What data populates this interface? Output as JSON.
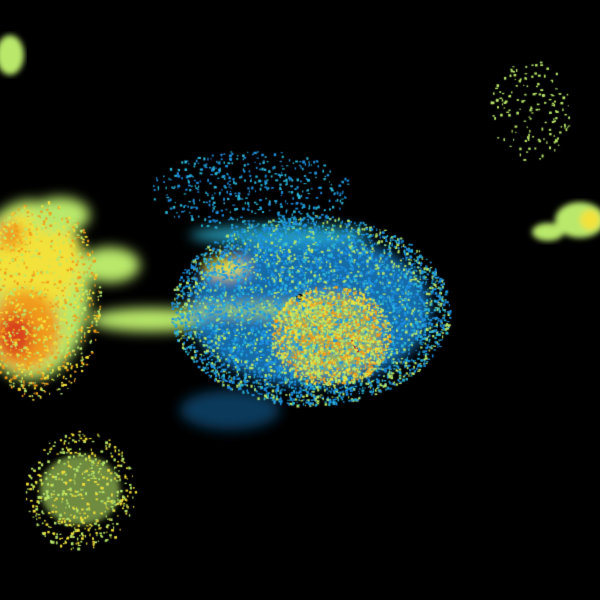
{
  "image": {
    "kind": "weather radar reflectivity display",
    "background": "#000000",
    "palette": {
      "light_blue": "#1e8fe0",
      "cyan": "#2bb7d8",
      "green_yellow": "#b9e86a",
      "yellow": "#f2e23a",
      "orange": "#f09a1a",
      "red": "#d8401a",
      "dark_red": "#b01010"
    },
    "radar_site_marker": "#000000"
  }
}
